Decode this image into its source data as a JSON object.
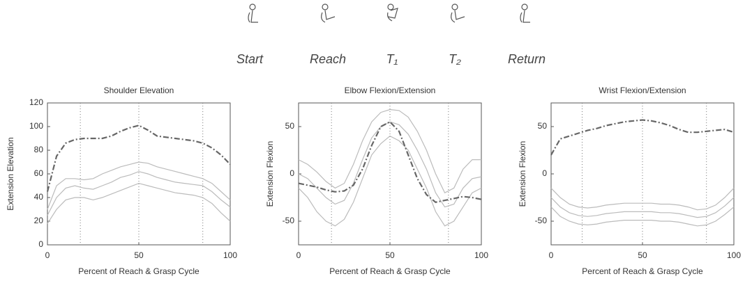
{
  "phases": [
    "Start",
    "Reach",
    "T₁",
    "T₂",
    "Return"
  ],
  "chart_data": [
    {
      "type": "line",
      "title": "Shoulder Elevation",
      "xlabel": "Percent of Reach & Grasp Cycle",
      "ylabel": "Extension Elevation",
      "x": [
        0,
        5,
        10,
        15,
        20,
        25,
        30,
        35,
        40,
        45,
        50,
        55,
        60,
        65,
        70,
        75,
        80,
        85,
        90,
        95,
        100
      ],
      "xlim": [
        0,
        100
      ],
      "xticks": [
        0,
        50,
        100
      ],
      "ylim": [
        0,
        120
      ],
      "yticks": [
        0,
        20,
        40,
        60,
        80,
        100,
        120
      ],
      "vlines": [
        18,
        50,
        85
      ],
      "series": [
        {
          "color": "#bbbbbb",
          "style": "solid",
          "values": [
            30,
            50,
            56,
            56,
            55,
            56,
            60,
            63,
            66,
            68,
            70,
            69,
            66,
            64,
            62,
            60,
            58,
            56,
            52,
            45,
            38
          ]
        },
        {
          "color": "#bbbbbb",
          "style": "solid",
          "values": [
            25,
            40,
            48,
            50,
            48,
            47,
            50,
            53,
            57,
            59,
            62,
            60,
            57,
            55,
            53,
            52,
            51,
            50,
            45,
            38,
            32
          ]
        },
        {
          "color": "#bbbbbb",
          "style": "solid",
          "values": [
            18,
            30,
            38,
            40,
            40,
            38,
            40,
            43,
            46,
            49,
            52,
            50,
            48,
            46,
            44,
            43,
            42,
            40,
            35,
            27,
            20
          ]
        },
        {
          "color": "#666666",
          "style": "dashdot",
          "values": [
            45,
            75,
            86,
            89,
            90,
            90,
            90,
            92,
            96,
            99,
            101,
            97,
            92,
            91,
            90,
            89,
            88,
            86,
            82,
            76,
            68
          ]
        }
      ]
    },
    {
      "type": "line",
      "title": "Elbow Flexion/Extension",
      "xlabel": "Percent of Reach & Grasp Cycle",
      "ylabel": "Extension Flexion",
      "x": [
        0,
        5,
        10,
        15,
        20,
        25,
        30,
        35,
        40,
        45,
        50,
        55,
        60,
        65,
        70,
        75,
        80,
        85,
        90,
        95,
        100
      ],
      "xlim": [
        0,
        100
      ],
      "xticks": [
        0,
        50,
        100
      ],
      "ylim": [
        -75,
        75
      ],
      "yticks": [
        -50,
        0,
        50
      ],
      "vlines": [
        18,
        50,
        82
      ],
      "series": [
        {
          "color": "#bbbbbb",
          "style": "solid",
          "values": [
            15,
            10,
            2,
            -8,
            -15,
            -10,
            10,
            35,
            55,
            65,
            68,
            67,
            60,
            45,
            25,
            0,
            -20,
            -15,
            5,
            15,
            15
          ]
        },
        {
          "color": "#bbbbbb",
          "style": "solid",
          "values": [
            0,
            -5,
            -15,
            -25,
            -32,
            -28,
            -10,
            15,
            38,
            50,
            55,
            52,
            42,
            25,
            5,
            -20,
            -35,
            -32,
            -15,
            -5,
            -3
          ]
        },
        {
          "color": "#bbbbbb",
          "style": "solid",
          "values": [
            -15,
            -25,
            -40,
            -50,
            -55,
            -48,
            -30,
            -5,
            20,
            32,
            40,
            35,
            25,
            5,
            -15,
            -40,
            -55,
            -50,
            -35,
            -20,
            -15
          ]
        },
        {
          "color": "#666666",
          "style": "dashdot",
          "values": [
            -10,
            -12,
            -14,
            -17,
            -19,
            -18,
            -12,
            5,
            30,
            50,
            55,
            45,
            20,
            -5,
            -22,
            -30,
            -28,
            -26,
            -24,
            -25,
            -27
          ]
        }
      ]
    },
    {
      "type": "line",
      "title": "Wrist Flexion/Extension",
      "xlabel": "Percent of Reach & Grasp Cycle",
      "ylabel": "Extension Flexion",
      "x": [
        0,
        5,
        10,
        15,
        20,
        25,
        30,
        35,
        40,
        45,
        50,
        55,
        60,
        65,
        70,
        75,
        80,
        85,
        90,
        95,
        100
      ],
      "xlim": [
        0,
        100
      ],
      "xticks": [
        0,
        50,
        100
      ],
      "ylim": [
        -75,
        75
      ],
      "yticks": [
        -50,
        0,
        50
      ],
      "vlines": [
        17,
        50,
        85
      ],
      "series": [
        {
          "color": "#bbbbbb",
          "style": "solid",
          "values": [
            -15,
            -25,
            -32,
            -35,
            -36,
            -35,
            -33,
            -32,
            -31,
            -31,
            -31,
            -31,
            -32,
            -32,
            -33,
            -35,
            -38,
            -37,
            -33,
            -25,
            -15
          ]
        },
        {
          "color": "#bbbbbb",
          "style": "solid",
          "values": [
            -25,
            -35,
            -41,
            -44,
            -45,
            -44,
            -42,
            -41,
            -40,
            -40,
            -40,
            -40,
            -41,
            -41,
            -42,
            -44,
            -46,
            -45,
            -41,
            -34,
            -25
          ]
        },
        {
          "color": "#bbbbbb",
          "style": "solid",
          "values": [
            -35,
            -45,
            -50,
            -53,
            -54,
            -53,
            -51,
            -50,
            -49,
            -49,
            -49,
            -49,
            -50,
            -50,
            -51,
            -53,
            -55,
            -54,
            -50,
            -43,
            -35
          ]
        },
        {
          "color": "#666666",
          "style": "dashdot",
          "values": [
            20,
            37,
            40,
            43,
            46,
            48,
            51,
            53,
            55,
            56,
            57,
            56,
            54,
            51,
            47,
            44,
            44,
            45,
            46,
            47,
            44
          ]
        }
      ]
    }
  ]
}
